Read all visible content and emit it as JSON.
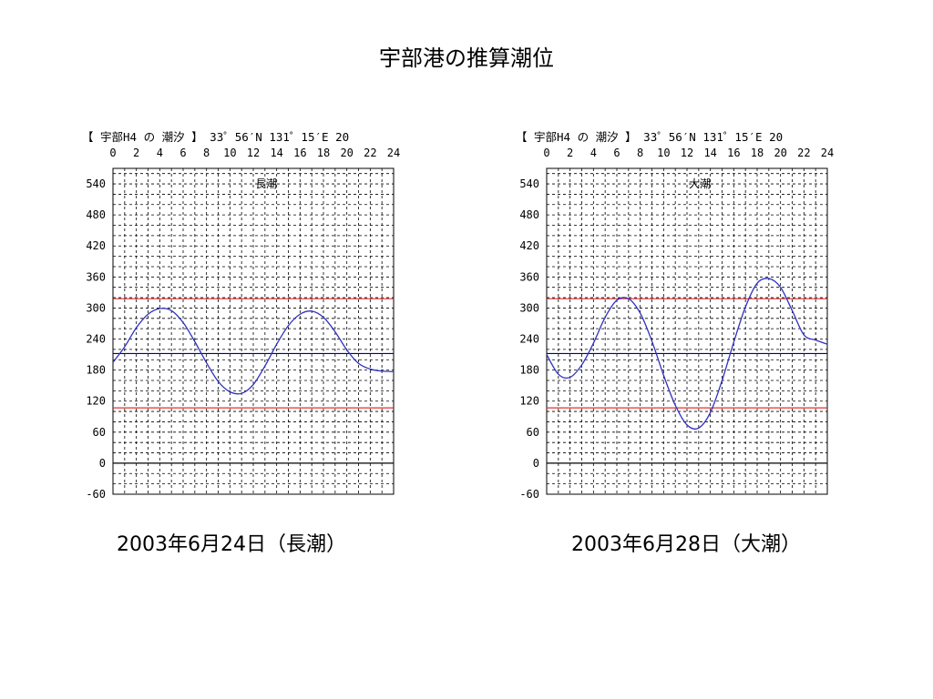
{
  "title": "宇部港の推算潮位",
  "chart_data": [
    {
      "type": "line",
      "header": "【 宇部H4 の 潮汐 】 33゜56′N 131゜15′E  20",
      "annotation": "長潮",
      "caption": "2003年6月24日（長潮）",
      "x_ticks": [
        "0",
        "2",
        "4",
        "6",
        "8",
        "10",
        "12",
        "14",
        "16",
        "18",
        "20",
        "22",
        "24"
      ],
      "y_ticks": [
        "540",
        "480",
        "420",
        "360",
        "300",
        "240",
        "180",
        "120",
        "60",
        "0",
        "-60"
      ],
      "xlim": [
        0,
        24
      ],
      "ylim": [
        -60,
        570
      ],
      "grid": true,
      "reference_lines": [
        {
          "y": 318,
          "color": "#e03030"
        },
        {
          "y": 212,
          "color": "#000080"
        },
        {
          "y": 107,
          "color": "#e03030"
        },
        {
          "y": 0,
          "color": "#000000"
        }
      ],
      "series": [
        {
          "color": "#3030c0",
          "x": [
            0,
            1,
            2,
            3,
            4,
            5,
            6,
            7,
            8,
            9,
            10,
            11,
            12,
            13,
            14,
            15,
            16,
            17,
            18,
            19,
            20,
            21,
            22,
            23,
            24
          ],
          "y": [
            195,
            225,
            262,
            288,
            299,
            295,
            272,
            235,
            194,
            158,
            138,
            135,
            152,
            188,
            230,
            266,
            288,
            294,
            282,
            254,
            219,
            193,
            182,
            178,
            177
          ]
        }
      ]
    },
    {
      "type": "line",
      "header": "【 宇部H4 の 潮汐 】 33゜56′N 131゜15′E  20",
      "annotation": "大潮",
      "caption": "2003年6月28日（大潮）",
      "x_ticks": [
        "0",
        "2",
        "4",
        "6",
        "8",
        "10",
        "12",
        "14",
        "16",
        "18",
        "20",
        "22",
        "24"
      ],
      "y_ticks": [
        "540",
        "480",
        "420",
        "360",
        "300",
        "240",
        "180",
        "120",
        "60",
        "0",
        "-60"
      ],
      "xlim": [
        0,
        24
      ],
      "ylim": [
        -60,
        570
      ],
      "grid": true,
      "reference_lines": [
        {
          "y": 318,
          "color": "#e03030"
        },
        {
          "y": 212,
          "color": "#000080"
        },
        {
          "y": 107,
          "color": "#e03030"
        },
        {
          "y": 0,
          "color": "#000000"
        }
      ],
      "series": [
        {
          "color": "#3030c0",
          "x": [
            0,
            1,
            2,
            3,
            4,
            5,
            6,
            7,
            8,
            9,
            10,
            11,
            12,
            13,
            14,
            15,
            16,
            17,
            18,
            19,
            20,
            21,
            22,
            23,
            24
          ],
          "y": [
            210,
            172,
            166,
            190,
            232,
            282,
            315,
            318,
            290,
            236,
            170,
            112,
            74,
            68,
            98,
            160,
            234,
            302,
            348,
            357,
            340,
            295,
            248,
            238,
            230
          ]
        }
      ]
    }
  ]
}
